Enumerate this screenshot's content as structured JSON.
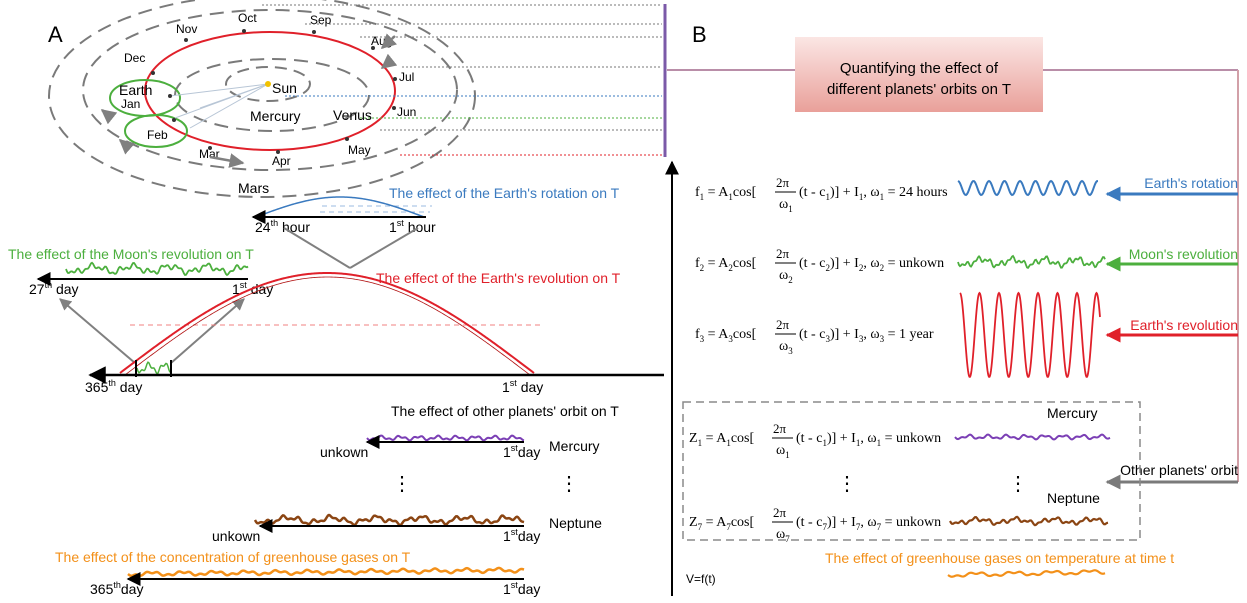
{
  "panel_a": {
    "letter": "A",
    "months": {
      "jan": "Jan",
      "feb": "Feb",
      "mar": "Mar",
      "apr": "Apr",
      "may": "May",
      "jun": "Jun",
      "jul": "Jul",
      "aug": "Aug",
      "sep": "Sep",
      "oct": "Oct",
      "nov": "Nov",
      "dec": "Dec"
    },
    "bodies": {
      "sun": "Sun",
      "earth": "Earth",
      "mercury": "Mercury",
      "venus": "Venus",
      "mars": "Mars"
    },
    "rotation": {
      "title": "The effect of  the Earth's rotation on T",
      "left_num": "24",
      "left_sup": "th",
      "left_word": "hour",
      "right_num": "1",
      "right_sup": "st",
      "right_word": "hour"
    },
    "moon": {
      "title": "The effect of the Moon's revolution on T",
      "left_num": "27",
      "left_sup": "th",
      "left_word": "day",
      "right_num": "1",
      "right_sup": "st",
      "right_word": "day"
    },
    "earth_rev": {
      "title": "The effect of the Earth's revolution on T",
      "left_num": "365",
      "left_sup": "th",
      "left_word": "day",
      "right_num": "1",
      "right_sup": "st",
      "right_word": "day"
    },
    "planets": {
      "title": "The effect of  other planets' orbit on T",
      "mercury": "Mercury",
      "neptune": "Neptune",
      "left_word": "unkown",
      "right_num": "1",
      "right_sup": "st",
      "right_word": "day",
      "dots": "⋮"
    },
    "ghg": {
      "title": "The  effect of the concentration of greenhouse gases on T",
      "left_num": "365",
      "left_sup": "th",
      "left_word": "day",
      "right_num": "1",
      "right_sup": "st",
      "right_word": "day"
    }
  },
  "panel_b": {
    "letter": "B",
    "header": {
      "line1": "Quantifying the effect of",
      "line2": "different planets' orbits on T"
    },
    "labels": {
      "rotation": "Earth's rotation",
      "moon": "Moon's revolution",
      "earth_rev": "Earth's revolution",
      "other": "Other planets' orbit"
    },
    "eq1": {
      "lhs": "f",
      "sub": "1",
      "A": "A",
      "c": "c",
      "I": "I",
      "omega_val": "= 24 hours"
    },
    "eq2": {
      "lhs": "f",
      "sub": "2",
      "A": "A",
      "c": "c",
      "I": "I",
      "omega_val": "= unkown"
    },
    "eq3": {
      "lhs": "f",
      "sub": "3",
      "A": "A",
      "c": "c",
      "I": "I",
      "omega_val": "= 1 year"
    },
    "eqz1": {
      "lhs": "Z",
      "sub": "1",
      "A": "A",
      "c": "c",
      "I": "I",
      "omega_val": "= unkown"
    },
    "eqz7": {
      "lhs": "Z",
      "sub": "7",
      "A": "A",
      "c": "c",
      "I": "I",
      "omega_val": "= unkown"
    },
    "twopi": "2π",
    "mercury": "Mercury",
    "neptune": "Neptune",
    "dots": "⋮",
    "footer": "The  effect of greenhouse gases on temperature at time t",
    "v": "V=f(t)"
  },
  "colors": {
    "blue": "#3a7abf",
    "green": "#4caf3e",
    "red": "#e0202a",
    "purple": "#7b3fb5",
    "brown": "#8b4513",
    "orange": "#f39019",
    "gray": "#7a7a7a"
  }
}
